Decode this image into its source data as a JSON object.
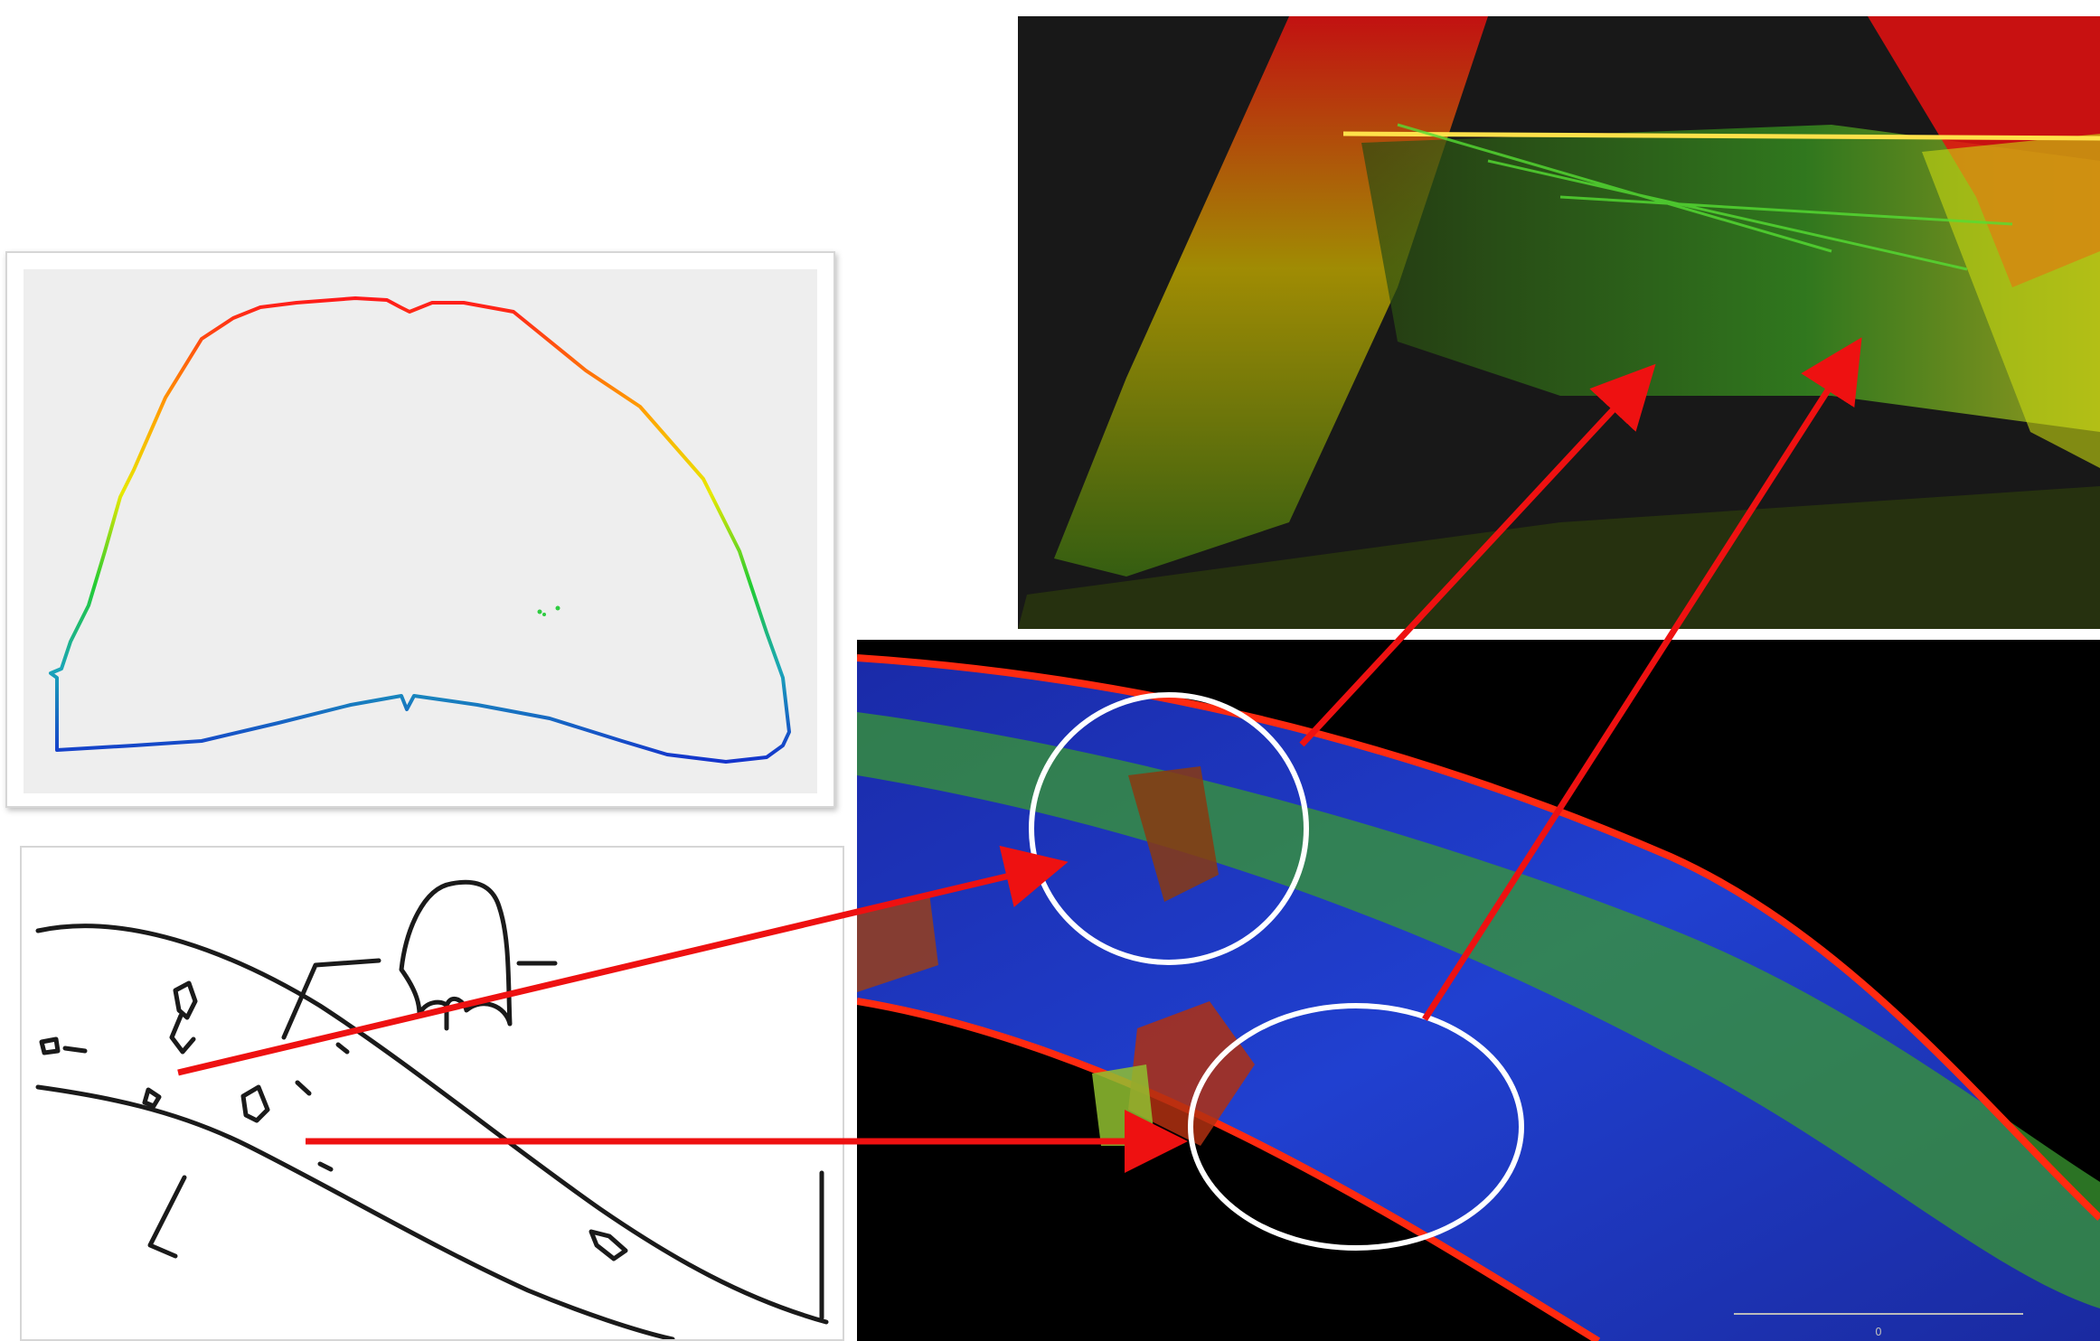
{
  "colors": {
    "arrow": "#ee1111",
    "highlight_circle": "#ffffff",
    "cross_section_bg": "#eeeeee",
    "perspective_bg": "#181818",
    "plan_bg": "#000000"
  },
  "icons": [
    "cross-section-profile",
    "hand-drawn-sketch",
    "point-cloud-perspective",
    "point-cloud-plan"
  ],
  "plan_scale_label": "0"
}
